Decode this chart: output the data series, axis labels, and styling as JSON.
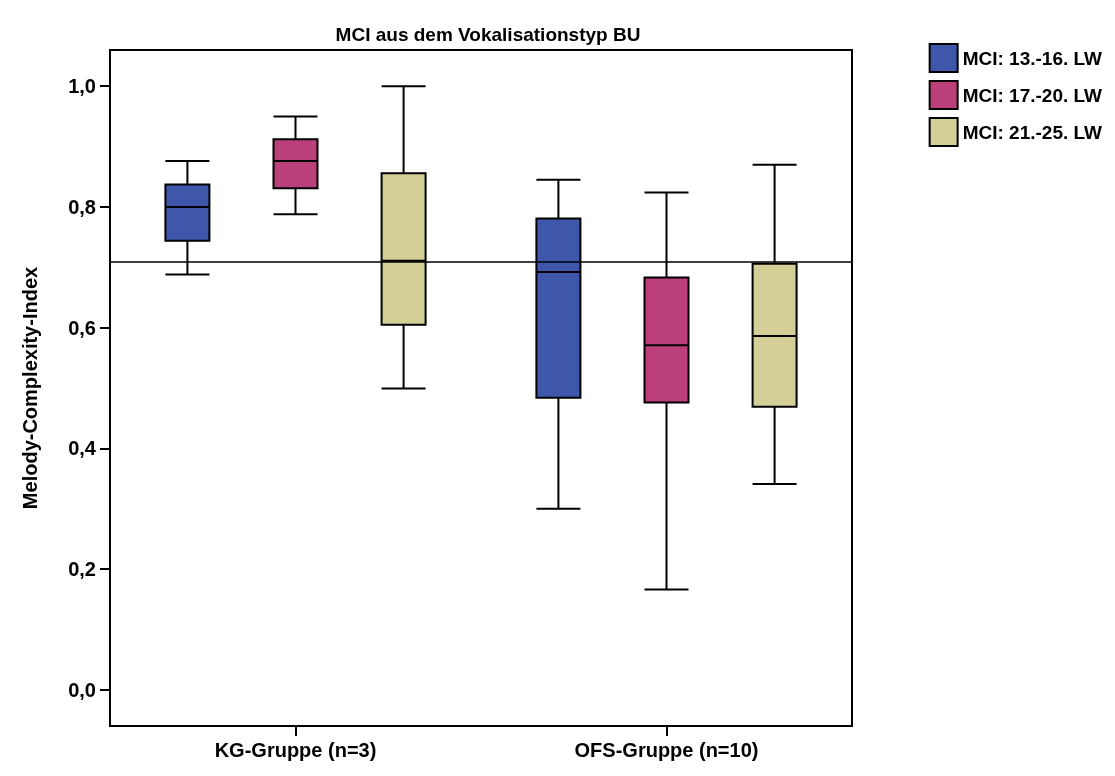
{
  "chart_data": {
    "type": "box",
    "title": "MCI aus dem Vokalisationstyp BU",
    "ylabel": "Melody-Complexity-Index",
    "categories": [
      "KG-Gruppe (n=3)",
      "OFS-Gruppe (n=10)"
    ],
    "ylim": [
      -0.06,
      1.06
    ],
    "yticks": [
      {
        "value": 0,
        "label": "0,0"
      },
      {
        "value": 0.2,
        "label": "0,2"
      },
      {
        "value": 0.4,
        "label": "0,4"
      },
      {
        "value": 0.6,
        "label": "0,6"
      },
      {
        "value": 0.8,
        "label": "0,8"
      },
      {
        "value": 1,
        "label": "1,0"
      }
    ],
    "series": [
      {
        "name": "MCI: 13.-16. LW",
        "color": "#3f57ab",
        "boxes": [
          {
            "low": 0.688,
            "q1": 0.744,
            "median": 0.8,
            "q3": 0.837,
            "high": 0.876
          },
          {
            "low": 0.3,
            "q1": 0.484,
            "median": 0.692,
            "q3": 0.781,
            "high": 0.845
          }
        ]
      },
      {
        "name": "MCI: 17.-20. LW",
        "color": "#bb3f7b",
        "boxes": [
          {
            "low": 0.788,
            "q1": 0.831,
            "median": 0.876,
            "q3": 0.912,
            "high": 0.95
          },
          {
            "low": 0.166,
            "q1": 0.476,
            "median": 0.571,
            "q3": 0.683,
            "high": 0.824
          }
        ]
      },
      {
        "name": "MCI: 21.-25. LW",
        "color": "#d4cf97",
        "boxes": [
          {
            "low": 0.499,
            "q1": 0.605,
            "median": 0.711,
            "q3": 0.856,
            "high": 1.0
          },
          {
            "low": 0.341,
            "q1": 0.469,
            "median": 0.586,
            "q3": 0.706,
            "high": 0.87
          }
        ]
      }
    ],
    "ref_lines": [
      {
        "axis": "y",
        "value": 0.71
      }
    ],
    "legend": "top right"
  }
}
